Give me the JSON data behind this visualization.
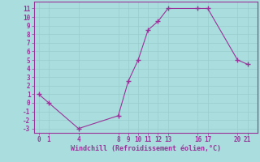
{
  "x": [
    0,
    1,
    4,
    8,
    9,
    10,
    11,
    12,
    13,
    16,
    17,
    20,
    21
  ],
  "y": [
    1,
    0,
    -3,
    -1.5,
    2.5,
    5,
    8.5,
    9.5,
    11,
    11,
    11,
    5,
    4.5
  ],
  "line_color": "#993399",
  "marker_color": "#993399",
  "bg_color": "#aadddd",
  "grid_color": "#99cccc",
  "xlabel": "Windchill (Refroidissement éolien,°C)",
  "xlabel_color": "#993399",
  "tick_color": "#993399",
  "spine_color": "#993399",
  "ylim": [
    -3.5,
    11.8
  ],
  "xlim": [
    -0.5,
    22.0
  ],
  "yticks": [
    -3,
    -2,
    -1,
    0,
    1,
    2,
    3,
    4,
    5,
    6,
    7,
    8,
    9,
    10,
    11
  ],
  "xticks": [
    0,
    1,
    4,
    8,
    9,
    10,
    11,
    12,
    13,
    16,
    17,
    20,
    21
  ],
  "tick_fontsize": 5.5,
  "xlabel_fontsize": 6.0
}
